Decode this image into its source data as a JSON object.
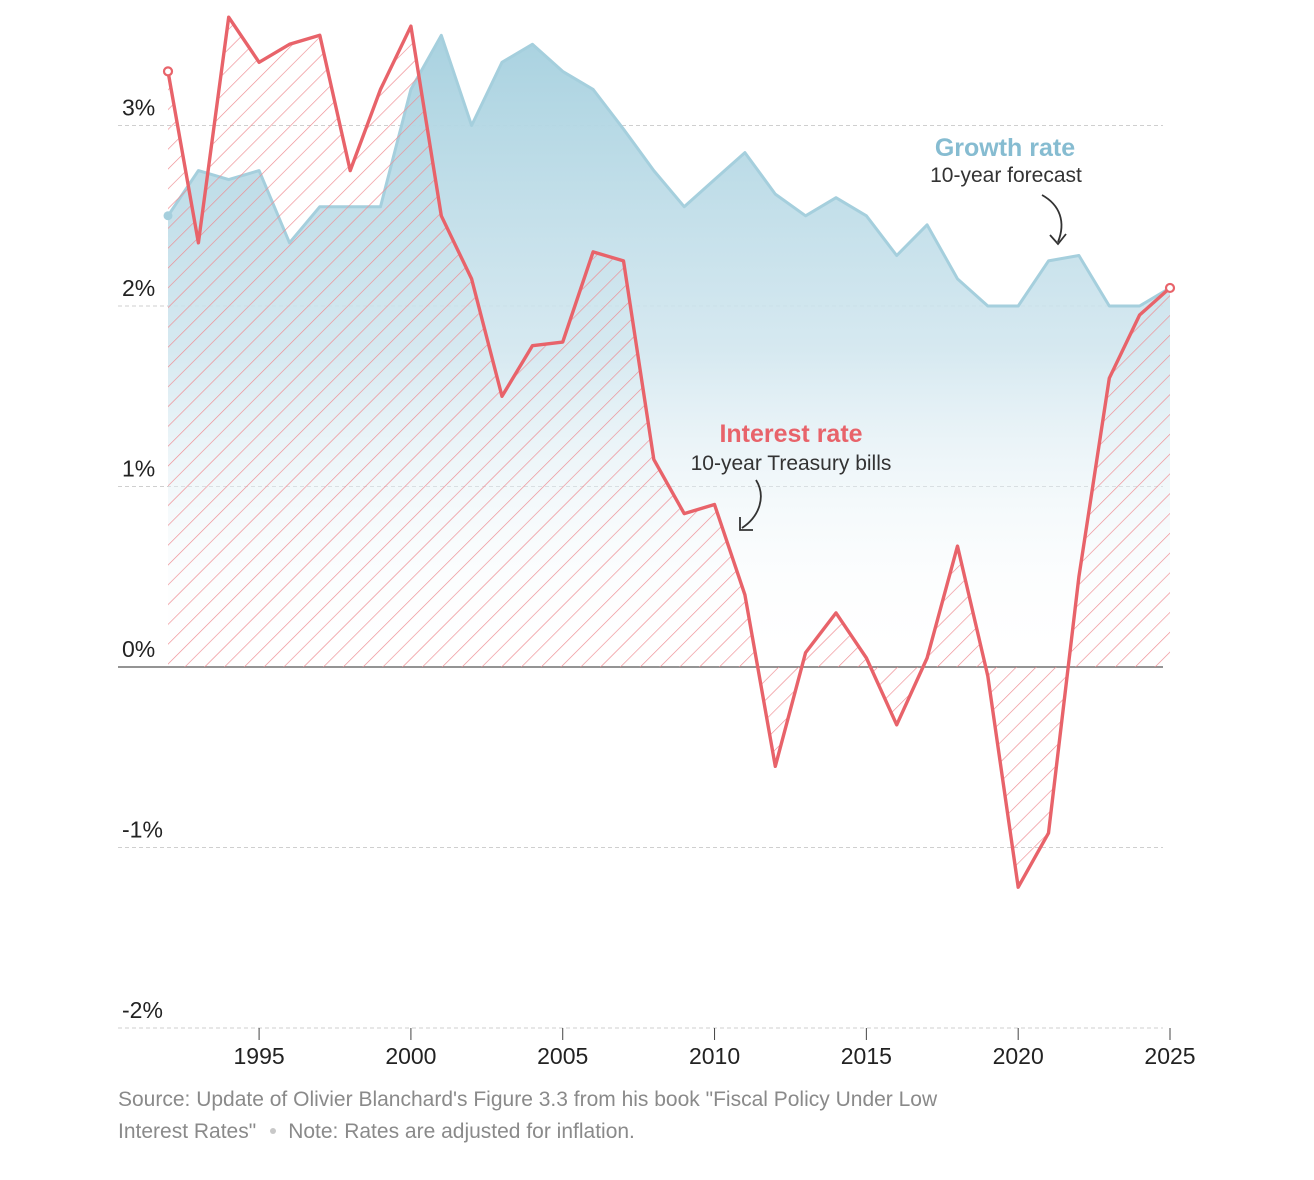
{
  "chart_data": {
    "type": "line",
    "x": [
      1992,
      1993,
      1994,
      1995,
      1996,
      1997,
      1998,
      1999,
      2000,
      2001,
      2002,
      2003,
      2004,
      2005,
      2006,
      2007,
      2008,
      2009,
      2010,
      2011,
      2012,
      2013,
      2014,
      2015,
      2016,
      2017,
      2018,
      2019,
      2020,
      2021,
      2022,
      2023,
      2024,
      2025
    ],
    "series": [
      {
        "name": "Growth rate",
        "subtitle": "10-year forecast",
        "color": "#8fc3d6",
        "style": "area-gradient",
        "values": [
          2.5,
          2.75,
          2.7,
          2.75,
          2.35,
          2.55,
          2.55,
          2.55,
          3.2,
          3.5,
          3.0,
          3.35,
          3.45,
          3.3,
          3.2,
          2.98,
          2.75,
          2.55,
          2.7,
          2.85,
          2.62,
          2.5,
          2.6,
          2.5,
          2.28,
          2.45,
          2.15,
          2.0,
          2.0,
          2.25,
          2.28,
          2.0,
          2.0,
          2.1
        ]
      },
      {
        "name": "Interest rate",
        "subtitle": "10-year Treasury bills",
        "color": "#e8636a",
        "style": "line-hatched",
        "values": [
          3.3,
          2.35,
          3.6,
          3.35,
          3.45,
          3.5,
          2.75,
          3.2,
          3.55,
          2.5,
          2.15,
          1.5,
          1.78,
          1.8,
          2.3,
          2.25,
          1.15,
          0.85,
          0.9,
          0.4,
          -0.55,
          0.08,
          0.3,
          0.05,
          -0.32,
          0.05,
          0.67,
          -0.05,
          -1.22,
          -0.92,
          0.5,
          1.6,
          1.95,
          2.1
        ]
      }
    ],
    "x_ticks": [
      "1995",
      "2000",
      "2005",
      "2010",
      "2015",
      "2020",
      "2025"
    ],
    "y_ticks": [
      "3%",
      "2%",
      "1%",
      "0%",
      "-1%",
      "-2%"
    ],
    "y_tick_values": [
      3,
      2,
      1,
      0,
      -1,
      -2
    ],
    "x_tick_values": [
      1995,
      2000,
      2005,
      2010,
      2015,
      2020,
      2025
    ],
    "ylim": [
      -2,
      3.6
    ],
    "xlim": [
      1992,
      2025
    ],
    "grid": "horizontal-dashed",
    "title": "",
    "xlabel": "",
    "ylabel": ""
  },
  "footer": {
    "source": "Source: Update of Olivier Blanchard's Figure 3.3 from his book \"Fiscal Policy Under Low Interest Rates\"",
    "note": "Note: Rates are adjusted for inflation."
  }
}
